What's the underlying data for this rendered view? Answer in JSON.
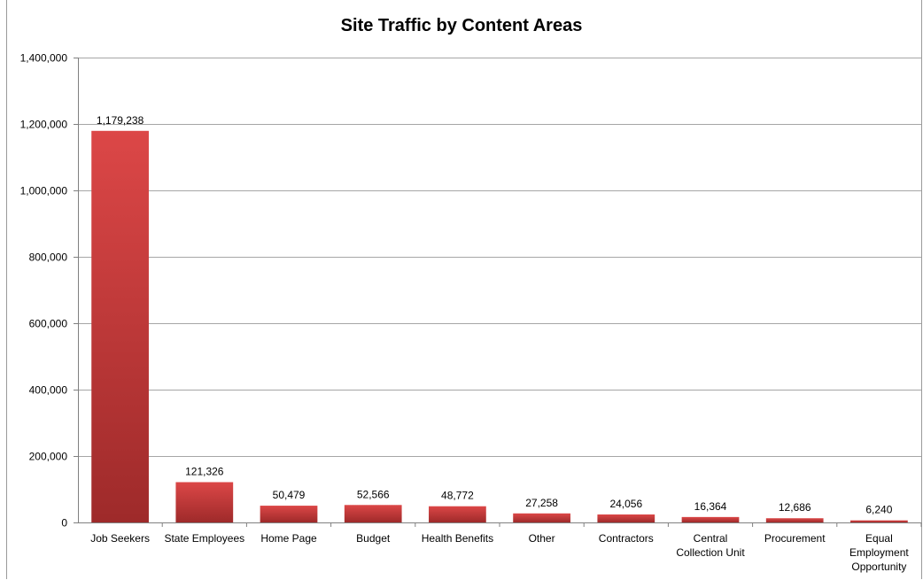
{
  "chart_data": {
    "type": "bar",
    "title": "Site Traffic by Content Areas",
    "xlabel": "",
    "ylabel": "",
    "ylim": [
      0,
      1400000
    ],
    "yticks": [
      0,
      200000,
      400000,
      600000,
      800000,
      1000000,
      1200000,
      1400000
    ],
    "ytick_labels": [
      "0",
      "200,000",
      "400,000",
      "600,000",
      "800,000",
      "1,000,000",
      "1,200,000",
      "1,400,000"
    ],
    "grid": true,
    "categories": [
      [
        "Job Seekers"
      ],
      [
        "State Employees"
      ],
      [
        "Home Page"
      ],
      [
        "Budget"
      ],
      [
        "Health Benefits"
      ],
      [
        "Other"
      ],
      [
        "Contractors"
      ],
      [
        "Central",
        "Collection Unit"
      ],
      [
        "Procurement"
      ],
      [
        "Equal",
        "Employment",
        "Opportunity"
      ]
    ],
    "values": [
      1179238,
      121326,
      50479,
      52566,
      48772,
      27258,
      24056,
      16364,
      12686,
      6240
    ],
    "data_labels": [
      "1,179,238",
      "121,326",
      "50,479",
      "52,566",
      "48,772",
      "27,258",
      "24,056",
      "16,364",
      "12,686",
      "6,240"
    ],
    "bar_color": "#c43a3a",
    "bar_color_light": "#dc4747",
    "bar_color_dark": "#9e2a2a"
  }
}
